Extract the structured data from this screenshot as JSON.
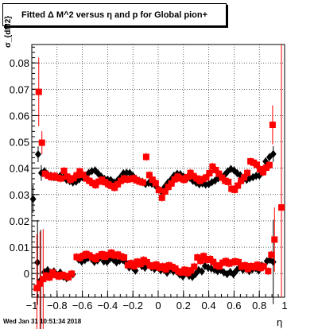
{
  "title": "Fitted Δ M^2 versus η and p for Global pion+",
  "footer": "Wed Jan 31 10:51:34 2018",
  "chart_data": {
    "type": "scatter",
    "xlabel": "η",
    "ylabel": "σ_{dM2}",
    "xlim": [
      -1,
      1
    ],
    "ylim": [
      -0.009,
      0.087
    ],
    "xticks": [
      -1,
      -0.8,
      -0.6,
      -0.4,
      -0.2,
      0,
      0.2,
      0.4,
      0.6,
      0.8,
      1
    ],
    "yticks": [
      0,
      0.01,
      0.02,
      0.03,
      0.04,
      0.05,
      0.06,
      0.07,
      0.08
    ],
    "grid": true,
    "series": [
      {
        "color": "#000000",
        "marker": "diamond",
        "points": [
          [
            -0.99,
            0.0283
          ],
          [
            -0.955,
            0.0042
          ],
          [
            -0.93,
            -0.0025
          ],
          [
            -0.9,
            0.0005
          ],
          [
            -0.875,
            0.0013
          ],
          [
            -0.85,
            0.0003
          ],
          [
            -0.825,
            0.0008
          ],
          [
            -0.8,
            -0.0008
          ],
          [
            -0.775,
            0.0004
          ],
          [
            -0.75,
            -0.0012
          ],
          [
            -0.725,
            -0.0018
          ],
          [
            -0.7,
            -0.0007
          ],
          [
            -0.675,
            -0.0003
          ],
          [
            -0.63,
            0.0053
          ],
          [
            -0.605,
            0.0045
          ],
          [
            -0.58,
            0.0051
          ],
          [
            -0.555,
            0.0059
          ],
          [
            -0.53,
            0.0057
          ],
          [
            -0.505,
            0.0044
          ],
          [
            -0.48,
            0.005
          ],
          [
            -0.455,
            0.0063
          ],
          [
            -0.43,
            0.0046
          ],
          [
            -0.405,
            0.0044
          ],
          [
            -0.38,
            0.0057
          ],
          [
            -0.355,
            0.0053
          ],
          [
            -0.33,
            0.0042
          ],
          [
            -0.305,
            0.0049
          ],
          [
            -0.28,
            0.0052
          ],
          [
            -0.255,
            0.0041
          ],
          [
            -0.23,
            0.0023
          ],
          [
            -0.205,
            0.0025
          ],
          [
            -0.18,
            0.0011
          ],
          [
            -0.155,
            0.0037
          ],
          [
            -0.13,
            0.0028
          ],
          [
            -0.105,
            0.0022
          ],
          [
            -0.08,
            0.0033
          ],
          [
            -0.055,
            0.0024
          ],
          [
            -0.03,
            0.0017
          ],
          [
            -0.005,
            0.0026
          ],
          [
            0.02,
            0.0012
          ],
          [
            0.045,
            0.0015
          ],
          [
            0.07,
            0.0003
          ],
          [
            0.095,
            0.0017
          ],
          [
            0.12,
            0.0008
          ],
          [
            0.145,
            0.0009
          ],
          [
            0.17,
            -0.0004
          ],
          [
            0.195,
            -0.0011
          ],
          [
            0.22,
            0.0003
          ],
          [
            0.245,
            -0.0009
          ],
          [
            0.27,
            -0.0013
          ],
          [
            0.295,
            -0.0002
          ],
          [
            0.32,
            0.0013
          ],
          [
            0.345,
            0.0008
          ],
          [
            0.37,
            0.0028
          ],
          [
            0.395,
            0.0022
          ],
          [
            0.42,
            0.0019
          ],
          [
            0.445,
            0.0015
          ],
          [
            0.47,
            0.0009
          ],
          [
            0.495,
            0.0013
          ],
          [
            0.52,
            0.0004
          ],
          [
            0.545,
            -0.0002
          ],
          [
            0.57,
            0.0006
          ],
          [
            0.595,
            -0.0003
          ],
          [
            0.62,
            0.0012
          ],
          [
            0.645,
            0.0024
          ],
          [
            0.67,
            0.0014
          ],
          [
            0.695,
            0.0018
          ],
          [
            0.72,
            0.0009
          ],
          [
            0.745,
            0.0016
          ],
          [
            0.77,
            0.0021
          ],
          [
            0.795,
            0.0011
          ],
          [
            0.82,
            0.003
          ],
          [
            0.86,
            0.0047
          ],
          [
            0.885,
            0.0052
          ],
          [
            0.91,
            0.0044
          ],
          [
            -0.95,
            0.0453
          ],
          [
            -0.925,
            0.0382
          ],
          [
            -0.9,
            0.0389
          ],
          [
            -0.875,
            0.0377
          ],
          [
            -0.85,
            0.0372
          ],
          [
            -0.825,
            0.0366
          ],
          [
            -0.8,
            0.0368
          ],
          [
            -0.775,
            0.0371
          ],
          [
            -0.75,
            0.0364
          ],
          [
            -0.725,
            0.0356
          ],
          [
            -0.7,
            0.0351
          ],
          [
            -0.675,
            0.0346
          ],
          [
            -0.65,
            0.0349
          ],
          [
            -0.625,
            0.0358
          ],
          [
            -0.6,
            0.0366
          ],
          [
            -0.575,
            0.0372
          ],
          [
            -0.55,
            0.0382
          ],
          [
            -0.525,
            0.0389
          ],
          [
            -0.5,
            0.0392
          ],
          [
            -0.475,
            0.038
          ],
          [
            -0.45,
            0.0368
          ],
          [
            -0.425,
            0.0359
          ],
          [
            -0.4,
            0.0357
          ],
          [
            -0.375,
            0.0355
          ],
          [
            -0.35,
            0.0346
          ],
          [
            -0.325,
            0.0352
          ],
          [
            -0.3,
            0.0365
          ],
          [
            -0.275,
            0.0381
          ],
          [
            -0.25,
            0.0383
          ],
          [
            -0.225,
            0.0382
          ],
          [
            -0.2,
            0.0371
          ],
          [
            -0.175,
            0.0359
          ],
          [
            -0.15,
            0.0353
          ],
          [
            -0.125,
            0.0349
          ],
          [
            -0.1,
            0.034
          ],
          [
            -0.075,
            0.0344
          ],
          [
            -0.05,
            0.0341
          ],
          [
            -0.025,
            0.0336
          ],
          [
            0.0,
            0.0322
          ],
          [
            0.025,
            0.0312
          ],
          [
            0.05,
            0.0328
          ],
          [
            0.075,
            0.0344
          ],
          [
            0.1,
            0.0356
          ],
          [
            0.125,
            0.0372
          ],
          [
            0.15,
            0.0379
          ],
          [
            0.175,
            0.0377
          ],
          [
            0.2,
            0.0368
          ],
          [
            0.225,
            0.0359
          ],
          [
            0.25,
            0.0364
          ],
          [
            0.275,
            0.0352
          ],
          [
            0.3,
            0.0345
          ],
          [
            0.325,
            0.0339
          ],
          [
            0.35,
            0.0342
          ],
          [
            0.375,
            0.0338
          ],
          [
            0.4,
            0.034
          ],
          [
            0.425,
            0.0347
          ],
          [
            0.45,
            0.0353
          ],
          [
            0.475,
            0.0362
          ],
          [
            0.5,
            0.0368
          ],
          [
            0.525,
            0.0374
          ],
          [
            0.55,
            0.0388
          ],
          [
            0.575,
            0.0397
          ],
          [
            0.6,
            0.0392
          ],
          [
            0.625,
            0.0381
          ],
          [
            0.65,
            0.0373
          ],
          [
            0.675,
            0.0359
          ],
          [
            0.7,
            0.0356
          ],
          [
            0.725,
            0.0362
          ],
          [
            0.75,
            0.0366
          ],
          [
            0.775,
            0.0371
          ],
          [
            0.8,
            0.0372
          ],
          [
            0.825,
            0.0394
          ],
          [
            0.85,
            0.0426
          ],
          [
            0.88,
            0.0442
          ],
          [
            0.91,
            0.0454
          ]
        ]
      },
      {
        "color": "#ff0000",
        "marker": "square",
        "points": [
          [
            -0.945,
            0.069
          ],
          [
            -0.92,
            0.0497
          ],
          [
            -0.895,
            0.0379
          ],
          [
            -0.87,
            0.0372
          ],
          [
            -0.845,
            0.0366
          ],
          [
            -0.82,
            0.0371
          ],
          [
            -0.795,
            0.0364
          ],
          [
            -0.77,
            0.0361
          ],
          [
            -0.745,
            0.039
          ],
          [
            -0.72,
            0.0368
          ],
          [
            -0.695,
            0.0356
          ],
          [
            -0.67,
            0.0362
          ],
          [
            -0.645,
            0.0373
          ],
          [
            -0.62,
            0.0388
          ],
          [
            -0.595,
            0.0375
          ],
          [
            -0.57,
            0.0361
          ],
          [
            -0.545,
            0.0352
          ],
          [
            -0.52,
            0.0344
          ],
          [
            -0.495,
            0.0336
          ],
          [
            -0.47,
            0.0349
          ],
          [
            -0.445,
            0.0356
          ],
          [
            -0.42,
            0.0347
          ],
          [
            -0.395,
            0.0339
          ],
          [
            -0.37,
            0.0333
          ],
          [
            -0.345,
            0.0326
          ],
          [
            -0.32,
            0.0339
          ],
          [
            -0.295,
            0.0352
          ],
          [
            -0.27,
            0.0361
          ],
          [
            -0.245,
            0.0357
          ],
          [
            -0.22,
            0.0359
          ],
          [
            -0.195,
            0.0362
          ],
          [
            -0.17,
            0.0354
          ],
          [
            -0.145,
            0.0349
          ],
          [
            -0.12,
            0.0346
          ],
          [
            -0.095,
            0.0443
          ],
          [
            -0.07,
            0.0374
          ],
          [
            -0.045,
            0.0356
          ],
          [
            -0.02,
            0.0343
          ],
          [
            0.005,
            0.0317
          ],
          [
            0.03,
            0.0288
          ],
          [
            0.055,
            0.0312
          ],
          [
            0.08,
            0.0329
          ],
          [
            0.105,
            0.0342
          ],
          [
            0.13,
            0.0358
          ],
          [
            0.155,
            0.0368
          ],
          [
            0.18,
            0.0361
          ],
          [
            0.205,
            0.0356
          ],
          [
            0.23,
            0.0366
          ],
          [
            0.255,
            0.0382
          ],
          [
            0.28,
            0.037
          ],
          [
            0.305,
            0.0361
          ],
          [
            0.33,
            0.0352
          ],
          [
            0.355,
            0.0359
          ],
          [
            0.38,
            0.0365
          ],
          [
            0.405,
            0.0381
          ],
          [
            0.43,
            0.0406
          ],
          [
            0.455,
            0.0393
          ],
          [
            0.48,
            0.0379
          ],
          [
            0.505,
            0.0364
          ],
          [
            0.53,
            0.0352
          ],
          [
            0.555,
            0.0348
          ],
          [
            0.58,
            0.0322
          ],
          [
            0.605,
            0.0318
          ],
          [
            0.63,
            0.0334
          ],
          [
            0.655,
            0.0352
          ],
          [
            0.68,
            0.0365
          ],
          [
            0.705,
            0.0382
          ],
          [
            0.73,
            0.0426
          ],
          [
            0.755,
            0.0421
          ],
          [
            0.78,
            0.0413
          ],
          [
            0.805,
            0.0396
          ],
          [
            0.83,
            0.0385
          ],
          [
            0.855,
            0.0402
          ],
          [
            0.88,
            0.0412
          ],
          [
            0.905,
            0.0565
          ],
          [
            -0.96,
            -0.0055
          ],
          [
            -0.935,
            -0.0038
          ],
          [
            -0.91,
            -0.0021
          ],
          [
            -0.885,
            -0.0008
          ],
          [
            -0.86,
            -0.0015
          ],
          [
            -0.835,
            0.0004
          ],
          [
            -0.81,
            -0.0006
          ],
          [
            -0.785,
            -0.0011
          ],
          [
            -0.76,
            -0.0005
          ],
          [
            -0.735,
            -0.0009
          ],
          [
            -0.71,
            -0.0014
          ],
          [
            -0.685,
            -0.0001
          ],
          [
            -0.645,
            0.0063
          ],
          [
            -0.62,
            0.0059
          ],
          [
            -0.595,
            0.0067
          ],
          [
            -0.57,
            0.0074
          ],
          [
            -0.545,
            0.0069
          ],
          [
            -0.52,
            0.0061
          ],
          [
            -0.495,
            0.0055
          ],
          [
            -0.47,
            0.0066
          ],
          [
            -0.445,
            0.0073
          ],
          [
            -0.42,
            0.0064
          ],
          [
            -0.395,
            0.0071
          ],
          [
            -0.37,
            0.0079
          ],
          [
            -0.345,
            0.0068
          ],
          [
            -0.32,
            0.0072
          ],
          [
            -0.295,
            0.0065
          ],
          [
            -0.27,
            0.0061
          ],
          [
            -0.24,
            0.0032
          ],
          [
            -0.215,
            0.0039
          ],
          [
            -0.19,
            0.0028
          ],
          [
            -0.165,
            0.0045
          ],
          [
            -0.14,
            0.0036
          ],
          [
            -0.115,
            0.0051
          ],
          [
            -0.09,
            0.0043
          ],
          [
            -0.065,
            0.0031
          ],
          [
            -0.04,
            0.0027
          ],
          [
            -0.015,
            0.0034
          ],
          [
            0.01,
            0.0022
          ],
          [
            0.035,
            0.0027
          ],
          [
            0.06,
            0.0016
          ],
          [
            0.085,
            0.0031
          ],
          [
            0.11,
            0.0025
          ],
          [
            0.135,
            0.0019
          ],
          [
            0.16,
            0.0008
          ],
          [
            0.185,
            0.0004
          ],
          [
            0.21,
            0.0014
          ],
          [
            0.235,
            0.0002
          ],
          [
            0.26,
            0.0012
          ],
          [
            0.285,
            0.0026
          ],
          [
            0.31,
            0.0061
          ],
          [
            0.335,
            0.0048
          ],
          [
            0.36,
            0.0066
          ],
          [
            0.385,
            0.0052
          ],
          [
            0.41,
            0.0055
          ],
          [
            0.435,
            0.0044
          ],
          [
            0.46,
            0.0031
          ],
          [
            0.485,
            0.0027
          ],
          [
            0.51,
            0.0041
          ],
          [
            0.535,
            0.0047
          ],
          [
            0.56,
            0.0038
          ],
          [
            0.585,
            0.0042
          ],
          [
            0.61,
            0.0046
          ],
          [
            0.635,
            0.0043
          ],
          [
            0.66,
            0.0026
          ],
          [
            0.685,
            0.0031
          ],
          [
            0.71,
            0.0017
          ],
          [
            0.735,
            0.0028
          ],
          [
            0.76,
            0.0024
          ],
          [
            0.785,
            0.0033
          ],
          [
            0.81,
            0.0021
          ],
          [
            0.835,
            0.0027
          ],
          [
            0.87,
            0.0009
          ],
          [
            0.895,
            0.0071
          ],
          [
            0.92,
            0.0129
          ],
          [
            0.975,
            0.0251
          ]
        ]
      }
    ]
  }
}
